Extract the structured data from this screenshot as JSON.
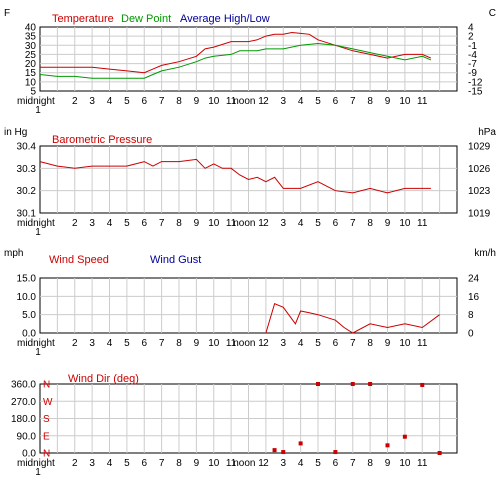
{
  "x_tick_labels": [
    "midnight\n1",
    "2",
    "3",
    "4",
    "5",
    "6",
    "7",
    "8",
    "9",
    "10",
    "11",
    "noon 1",
    "2",
    "3",
    "4",
    "5",
    "6",
    "7",
    "8",
    "9",
    "10",
    "11"
  ],
  "colors": {
    "red": "#cc0000",
    "green": "#009900",
    "blue": "#000099",
    "grid": "#cccccc",
    "axis": "#000000"
  },
  "chart_data": [
    {
      "type": "line",
      "title": "",
      "legend": [
        "Temperature",
        "Dew Point",
        "Average High/Low"
      ],
      "left_unit": "F",
      "right_unit": "C",
      "ylim": [
        5,
        40
      ],
      "left_ticks": [
        "40",
        "35",
        "30",
        "25",
        "20",
        "15",
        "10",
        "5"
      ],
      "right_ticks": [
        "4",
        "2",
        "-1",
        "-4",
        "-7",
        "-9",
        "-12",
        "-15"
      ],
      "x_range": [
        0,
        24
      ],
      "series": [
        {
          "name": "Temperature",
          "color": "#cc0000",
          "x": [
            0,
            1,
            2,
            3,
            4,
            5,
            6,
            6.5,
            7,
            8,
            9,
            9.5,
            10,
            11,
            12,
            12.5,
            13,
            13.5,
            14,
            14.5,
            15,
            15.5,
            16,
            17,
            18,
            19,
            20,
            21,
            22,
            22.5
          ],
          "y": [
            18,
            18,
            18,
            18,
            17,
            16,
            15,
            17,
            19,
            21,
            24,
            28,
            29,
            32,
            32,
            33,
            35,
            36,
            36,
            37,
            36.5,
            36,
            33,
            30,
            27,
            25,
            23,
            25,
            25,
            23
          ]
        },
        {
          "name": "Dew Point",
          "color": "#009900",
          "x": [
            0,
            1,
            2,
            3,
            4,
            5,
            6,
            6.5,
            7,
            8,
            9,
            9.5,
            10,
            11,
            11.5,
            12,
            12.5,
            13,
            13.5,
            14,
            15,
            16,
            17,
            18,
            19,
            20,
            21,
            22,
            22.5
          ],
          "y": [
            14,
            13,
            13,
            12,
            12,
            12,
            12,
            14,
            16,
            18,
            21,
            23,
            24,
            25,
            27,
            27,
            27,
            28,
            28,
            28,
            30,
            31,
            30,
            28,
            26,
            24,
            22,
            24,
            22
          ]
        },
        {
          "name": "Average High/Low",
          "color": "#000099",
          "x": [],
          "y": []
        }
      ]
    },
    {
      "type": "line",
      "title": "",
      "legend": [
        "Barometric Pressure"
      ],
      "left_unit": "in Hg",
      "right_unit": "hPa",
      "ylim": [
        30.1,
        30.4
      ],
      "left_ticks": [
        "30.4",
        "30.3",
        "30.2",
        "30.1"
      ],
      "right_ticks": [
        "1029",
        "1026",
        "1023",
        "1019"
      ],
      "x_range": [
        0,
        24
      ],
      "series": [
        {
          "name": "Barometric Pressure",
          "color": "#cc0000",
          "x": [
            0,
            1,
            2,
            3,
            4,
            5,
            6,
            6.5,
            7,
            8,
            9,
            9.5,
            10,
            10.5,
            11,
            11.5,
            12,
            12.5,
            13,
            13.5,
            14,
            15,
            16,
            17,
            18,
            19,
            20,
            21,
            22,
            22.5
          ],
          "y": [
            30.33,
            30.31,
            30.3,
            30.31,
            30.31,
            30.31,
            30.33,
            30.31,
            30.33,
            30.33,
            30.34,
            30.3,
            30.32,
            30.3,
            30.3,
            30.27,
            30.25,
            30.26,
            30.24,
            30.26,
            30.21,
            30.21,
            30.24,
            30.2,
            30.19,
            30.21,
            30.19,
            30.21,
            30.21,
            30.21
          ]
        }
      ]
    },
    {
      "type": "line",
      "title": "",
      "legend": [
        "Wind Speed",
        "Wind Gust"
      ],
      "left_unit": "mph",
      "right_unit": "km/h",
      "ylim": [
        0,
        15
      ],
      "left_ticks": [
        "15.0",
        "10.0",
        "5.0",
        "0.0"
      ],
      "right_ticks": [
        "24",
        "16",
        "8",
        "0"
      ],
      "x_range": [
        0,
        24
      ],
      "series": [
        {
          "name": "Wind Speed",
          "color": "#cc0000",
          "x": [
            13,
            13.5,
            14,
            14.7,
            15,
            15.5,
            16,
            17,
            17.5,
            18,
            19,
            20,
            21,
            22,
            23
          ],
          "y": [
            0,
            8,
            7,
            2.5,
            6,
            5.5,
            5,
            3.5,
            1.5,
            0,
            2.5,
            1.5,
            2.5,
            1.5,
            5
          ]
        },
        {
          "name": "Wind Gust",
          "color": "#000099",
          "x": [],
          "y": []
        }
      ]
    },
    {
      "type": "scatter",
      "title": "",
      "legend": [
        "Wind Dir (deg)"
      ],
      "left_unit": "",
      "right_unit": "",
      "ylim": [
        0,
        360
      ],
      "left_ticks": [
        "360.0",
        "270.0",
        "180.0",
        "90.0",
        "0.0"
      ],
      "compass_labels": [
        "N",
        "W",
        "S",
        "E",
        "N"
      ],
      "x_range": [
        0,
        24
      ],
      "series": [
        {
          "name": "Wind Dir (deg)",
          "color": "#cc0000",
          "x": [
            13.5,
            14,
            15,
            16,
            17,
            18,
            19,
            20,
            21,
            22,
            23
          ],
          "y": [
            15,
            5,
            50,
            360,
            5,
            360,
            360,
            40,
            85,
            355,
            0
          ]
        }
      ]
    }
  ]
}
